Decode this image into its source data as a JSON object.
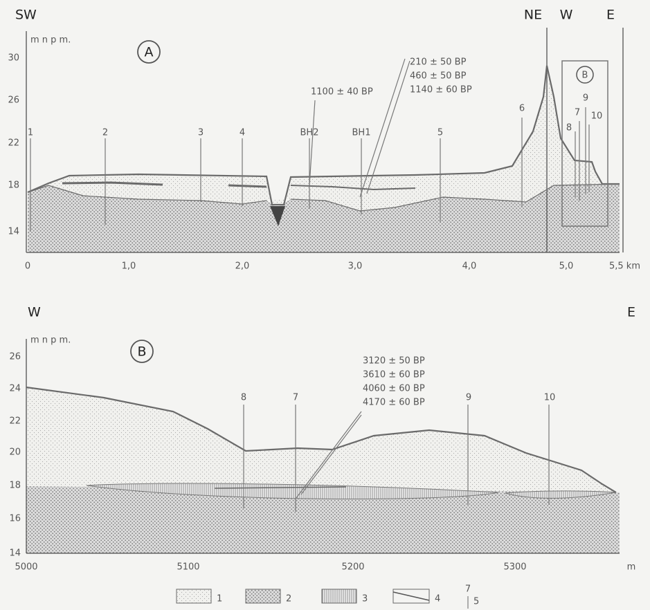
{
  "panel_a": {
    "label": "A",
    "left_dir": "SW",
    "right_dirs": [
      "NE",
      "W",
      "E"
    ],
    "y_unit": "m n p m.",
    "yticks": [
      "30",
      "26",
      "22",
      "18",
      "14"
    ],
    "xticks": [
      "0",
      "1,0",
      "2,0",
      "3,0",
      "4,0",
      "5,0",
      "5,5 km"
    ],
    "boreholes": [
      "1",
      "2",
      "3",
      "4",
      "BH2",
      "BH1",
      "5",
      "6",
      "8",
      "7",
      "9",
      "10"
    ],
    "dates_bh2": [
      "1100 ± 40 BP"
    ],
    "dates_bh1": [
      "210 ± 50 BP",
      "460 ± 50 BP",
      "1140 ± 60 BP"
    ],
    "inset_label": "B"
  },
  "panel_b": {
    "label": "B",
    "left_dir": "W",
    "right_dir": "E",
    "y_unit": "m n p m.",
    "yticks": [
      "26",
      "24",
      "22",
      "20",
      "18",
      "16",
      "14"
    ],
    "xticks": [
      "5000",
      "5100",
      "5200",
      "5300",
      "m"
    ],
    "boreholes": [
      "8",
      "7",
      "9",
      "10"
    ],
    "dates": [
      "3120 ± 50 BP",
      "3610 ± 60 BP",
      "4060 ± 60 BP",
      "4170 ± 60 BP"
    ]
  },
  "legend": {
    "items": [
      "1",
      "2",
      "3",
      "4"
    ],
    "borehole_symbol": "7",
    "borehole_item": "5"
  }
}
